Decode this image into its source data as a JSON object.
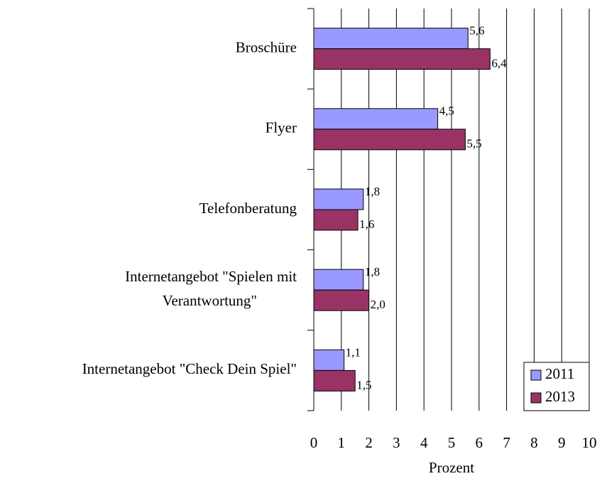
{
  "chart_data": {
    "type": "hbar",
    "categories": [
      "Broschüre",
      "Flyer",
      "Telefonberatung",
      "Internetangebot \"Spielen mit\nVerantwortung\"",
      "Internetangebot \"Check Dein Spiel\""
    ],
    "series": [
      {
        "name": "2011",
        "color": "#9999ff",
        "values": [
          5.6,
          4.5,
          1.8,
          1.8,
          1.1
        ],
        "value_labels": [
          "5,6",
          "4,5",
          "1,8",
          "1,8",
          "1,1"
        ]
      },
      {
        "name": "2013",
        "color": "#993366",
        "values": [
          6.4,
          5.5,
          1.6,
          2.0,
          1.5
        ],
        "value_labels": [
          "6,4",
          "5,5",
          "1,6",
          "2,0",
          "1,5"
        ]
      }
    ],
    "xlabel": "Prozent",
    "xlim": [
      0,
      10
    ],
    "xticks": [
      0,
      1,
      2,
      3,
      4,
      5,
      6,
      7,
      8,
      9,
      10
    ],
    "grid": true,
    "legend": "lower right"
  }
}
